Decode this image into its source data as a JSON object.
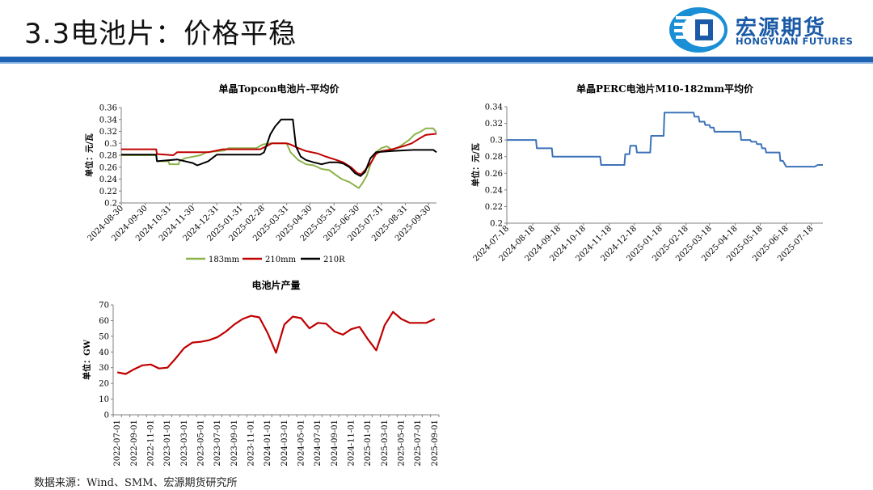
{
  "page": {
    "title": "3.3电池片：价格平稳",
    "logo_cn": "宏源期货",
    "logo_en": "HONGYUAN FUTURES",
    "source": "数据来源：Wind、SMM、宏源期货研究所",
    "colors": {
      "brand_blue": "#1a5aa6",
      "bar_blue": "#1f64b4"
    }
  },
  "chart_data": [
    {
      "type": "line",
      "title": "单晶Topcon电池片-平均价",
      "ylabel": "单位：元/瓦",
      "ylim": [
        0.2,
        0.36
      ],
      "yticks": [
        "0.2",
        "0.22",
        "0.24",
        "0.26",
        "0.28",
        "0.3",
        "0.32",
        "0.34",
        "0.36"
      ],
      "xlim": [
        "2024-08-30",
        "2025-10-10"
      ],
      "xticks": [
        "2024-08-30",
        "2024-09-30",
        "2024-10-31",
        "2024-11-30",
        "2024-12-31",
        "2025-01-31",
        "2025-02-28",
        "2025-03-31",
        "2025-04-30",
        "2025-05-31",
        "2025-06-30",
        "2025-07-31",
        "2025-08-31",
        "2025-09-30"
      ],
      "legend_position": "bottom",
      "series": [
        {
          "name": "183mm",
          "color": "#8db24a",
          "points": [
            [
              "2024-08-30",
              0.28
            ],
            [
              "2024-10-14",
              0.28
            ],
            [
              "2024-10-15",
              0.27
            ],
            [
              "2024-10-30",
              0.27
            ],
            [
              "2024-10-31",
              0.265
            ],
            [
              "2024-11-12",
              0.265
            ],
            [
              "2024-11-13",
              0.27
            ],
            [
              "2024-11-20",
              0.275
            ],
            [
              "2024-12-10",
              0.28
            ],
            [
              "2024-12-18",
              0.285
            ],
            [
              "2025-01-10",
              0.288
            ],
            [
              "2025-01-15",
              0.292
            ],
            [
              "2025-02-20",
              0.292
            ],
            [
              "2025-02-28",
              0.298
            ],
            [
              "2025-03-10",
              0.3
            ],
            [
              "2025-03-25",
              0.3
            ],
            [
              "2025-03-31",
              0.3
            ],
            [
              "2025-04-05",
              0.285
            ],
            [
              "2025-04-15",
              0.272
            ],
            [
              "2025-04-25",
              0.265
            ],
            [
              "2025-05-05",
              0.263
            ],
            [
              "2025-05-15",
              0.257
            ],
            [
              "2025-05-25",
              0.255
            ],
            [
              "2025-06-01",
              0.248
            ],
            [
              "2025-06-10",
              0.24
            ],
            [
              "2025-06-20",
              0.235
            ],
            [
              "2025-06-28",
              0.228
            ],
            [
              "2025-07-02",
              0.225
            ],
            [
              "2025-07-06",
              0.232
            ],
            [
              "2025-07-12",
              0.245
            ],
            [
              "2025-07-18",
              0.268
            ],
            [
              "2025-07-24",
              0.285
            ],
            [
              "2025-07-31",
              0.292
            ],
            [
              "2025-08-07",
              0.295
            ],
            [
              "2025-08-14",
              0.289
            ],
            [
              "2025-08-24",
              0.295
            ],
            [
              "2025-09-04",
              0.305
            ],
            [
              "2025-09-12",
              0.315
            ],
            [
              "2025-09-20",
              0.32
            ],
            [
              "2025-09-26",
              0.325
            ],
            [
              "2025-10-06",
              0.325
            ],
            [
              "2025-10-10",
              0.318
            ]
          ]
        },
        {
          "name": "210mm",
          "color": "#c00000",
          "points": [
            [
              "2024-08-30",
              0.29
            ],
            [
              "2024-10-14",
              0.29
            ],
            [
              "2024-10-15",
              0.282
            ],
            [
              "2024-11-05",
              0.28
            ],
            [
              "2024-11-10",
              0.285
            ],
            [
              "2024-12-20",
              0.285
            ],
            [
              "2025-01-08",
              0.29
            ],
            [
              "2025-02-25",
              0.29
            ],
            [
              "2025-03-05",
              0.295
            ],
            [
              "2025-03-12",
              0.3
            ],
            [
              "2025-03-31",
              0.3
            ],
            [
              "2025-04-05",
              0.298
            ],
            [
              "2025-04-15",
              0.292
            ],
            [
              "2025-04-25",
              0.287
            ],
            [
              "2025-05-10",
              0.283
            ],
            [
              "2025-05-20",
              0.278
            ],
            [
              "2025-06-01",
              0.273
            ],
            [
              "2025-06-12",
              0.268
            ],
            [
              "2025-06-22",
              0.26
            ],
            [
              "2025-06-30",
              0.25
            ],
            [
              "2025-07-05",
              0.248
            ],
            [
              "2025-07-10",
              0.255
            ],
            [
              "2025-07-18",
              0.268
            ],
            [
              "2025-07-24",
              0.282
            ],
            [
              "2025-07-31",
              0.287
            ],
            [
              "2025-08-14",
              0.29
            ],
            [
              "2025-08-28",
              0.295
            ],
            [
              "2025-09-08",
              0.3
            ],
            [
              "2025-09-18",
              0.308
            ],
            [
              "2025-09-26",
              0.314
            ],
            [
              "2025-10-10",
              0.316
            ]
          ]
        },
        {
          "name": "210R",
          "color": "#000000",
          "points": [
            [
              "2024-08-30",
              0.281
            ],
            [
              "2024-10-14",
              0.281
            ],
            [
              "2024-10-15",
              0.27
            ],
            [
              "2024-11-10",
              0.273
            ],
            [
              "2024-11-30",
              0.267
            ],
            [
              "2024-12-06",
              0.263
            ],
            [
              "2024-12-20",
              0.27
            ],
            [
              "2024-12-31",
              0.281
            ],
            [
              "2025-02-25",
              0.281
            ],
            [
              "2025-03-02",
              0.285
            ],
            [
              "2025-03-06",
              0.3
            ],
            [
              "2025-03-10",
              0.315
            ],
            [
              "2025-03-16",
              0.328
            ],
            [
              "2025-03-24",
              0.34
            ],
            [
              "2025-04-08",
              0.34
            ],
            [
              "2025-04-12",
              0.295
            ],
            [
              "2025-04-18",
              0.278
            ],
            [
              "2025-04-25",
              0.272
            ],
            [
              "2025-05-05",
              0.268
            ],
            [
              "2025-05-15",
              0.265
            ],
            [
              "2025-05-25",
              0.268
            ],
            [
              "2025-06-05",
              0.268
            ],
            [
              "2025-06-12",
              0.266
            ],
            [
              "2025-06-20",
              0.26
            ],
            [
              "2025-06-27",
              0.25
            ],
            [
              "2025-07-04",
              0.245
            ],
            [
              "2025-07-10",
              0.252
            ],
            [
              "2025-07-17",
              0.275
            ],
            [
              "2025-07-24",
              0.285
            ],
            [
              "2025-08-14",
              0.287
            ],
            [
              "2025-09-10",
              0.289
            ],
            [
              "2025-10-06",
              0.289
            ],
            [
              "2025-10-10",
              0.285
            ]
          ]
        }
      ]
    },
    {
      "type": "line",
      "title": "单晶PERC电池片M10-182mm平均价",
      "ylabel": "单位：元/瓦",
      "ylim": [
        0.2,
        0.34
      ],
      "yticks": [
        "0.2",
        "0.22",
        "0.24",
        "0.26",
        "0.28",
        "0.3",
        "0.32",
        "0.34"
      ],
      "xlim": [
        "2024-07-18",
        "2025-08-01"
      ],
      "xticks": [
        "2024-07-18",
        "2024-08-18",
        "2024-09-18",
        "2024-10-18",
        "2024-11-18",
        "2024-12-18",
        "2025-01-18",
        "2025-02-18",
        "2025-03-18",
        "2025-04-18",
        "2025-05-18",
        "2025-06-18",
        "2025-07-18"
      ],
      "legend_position": "none",
      "series": [
        {
          "name": "",
          "color": "#3d72b8",
          "points": [
            [
              "2024-07-18",
              0.3
            ],
            [
              "2024-08-22",
              0.3
            ],
            [
              "2024-08-23",
              0.29
            ],
            [
              "2024-09-10",
              0.29
            ],
            [
              "2024-09-11",
              0.28
            ],
            [
              "2024-11-07",
              0.28
            ],
            [
              "2024-11-08",
              0.27
            ],
            [
              "2024-12-06",
              0.27
            ],
            [
              "2024-12-07",
              0.283
            ],
            [
              "2024-12-12",
              0.283
            ],
            [
              "2024-12-13",
              0.293
            ],
            [
              "2024-12-20",
              0.293
            ],
            [
              "2024-12-21",
              0.285
            ],
            [
              "2025-01-06",
              0.285
            ],
            [
              "2025-01-07",
              0.305
            ],
            [
              "2025-01-22",
              0.305
            ],
            [
              "2025-01-23",
              0.333
            ],
            [
              "2025-02-27",
              0.333
            ],
            [
              "2025-02-28",
              0.328
            ],
            [
              "2025-03-05",
              0.328
            ],
            [
              "2025-03-06",
              0.322
            ],
            [
              "2025-03-12",
              0.322
            ],
            [
              "2025-03-13",
              0.318
            ],
            [
              "2025-03-18",
              0.318
            ],
            [
              "2025-03-19",
              0.315
            ],
            [
              "2025-03-23",
              0.315
            ],
            [
              "2025-03-24",
              0.31
            ],
            [
              "2025-04-24",
              0.31
            ],
            [
              "2025-04-25",
              0.3
            ],
            [
              "2025-05-06",
              0.3
            ],
            [
              "2025-05-07",
              0.298
            ],
            [
              "2025-05-13",
              0.298
            ],
            [
              "2025-05-14",
              0.295
            ],
            [
              "2025-05-19",
              0.295
            ],
            [
              "2025-05-20",
              0.29
            ],
            [
              "2025-05-24",
              0.29
            ],
            [
              "2025-05-25",
              0.285
            ],
            [
              "2025-06-10",
              0.285
            ],
            [
              "2025-06-11",
              0.275
            ],
            [
              "2025-06-14",
              0.275
            ],
            [
              "2025-06-18",
              0.268
            ],
            [
              "2025-07-22",
              0.268
            ],
            [
              "2025-07-26",
              0.27
            ],
            [
              "2025-08-01",
              0.27
            ]
          ]
        }
      ]
    },
    {
      "type": "line",
      "title": "电池片产量",
      "ylabel": "单位：GW",
      "ylim": [
        0,
        70
      ],
      "yticks": [
        "0",
        "10",
        "20",
        "30",
        "40",
        "50",
        "60",
        "70"
      ],
      "categories": [
        "2022-07-01",
        "2022-08-01",
        "2022-09-01",
        "2022-10-01",
        "2022-11-01",
        "2022-12-01",
        "2023-01-01",
        "2023-02-01",
        "2023-03-01",
        "2023-04-01",
        "2023-05-01",
        "2023-06-01",
        "2023-07-01",
        "2023-08-01",
        "2023-09-01",
        "2023-10-01",
        "2023-11-01",
        "2023-12-01",
        "2024-01-01",
        "2024-02-01",
        "2024-03-01",
        "2024-04-01",
        "2024-05-01",
        "2024-06-01",
        "2024-07-01",
        "2024-08-01",
        "2024-09-01",
        "2024-10-01",
        "2024-11-01",
        "2024-12-01",
        "2025-01-01",
        "2025-02-01",
        "2025-03-01",
        "2025-04-01",
        "2025-05-01",
        "2025-06-01",
        "2025-07-01",
        "2025-08-01",
        "2025-09-01"
      ],
      "xtick_labels": [
        "2022-07-01",
        "2022-09-01",
        "2022-11-01",
        "2023-01-01",
        "2023-03-01",
        "2023-05-01",
        "2023-07-01",
        "2023-09-01",
        "2023-11-01",
        "2024-01-01",
        "2024-03-01",
        "2024-05-01",
        "2024-07-01",
        "2024-09-01",
        "2024-11-01",
        "2025-01-01",
        "2025-03-01",
        "2025-05-01",
        "2025-07-01",
        "2025-09-01"
      ],
      "legend_position": "none",
      "series": [
        {
          "name": "",
          "color": "#c00000",
          "values": [
            27,
            26,
            29,
            31.5,
            32,
            29.5,
            30,
            36,
            42.5,
            46,
            46.5,
            47.5,
            49.5,
            53,
            57.5,
            61,
            63,
            62,
            52,
            39.5,
            57.5,
            62.5,
            61.5,
            55,
            58.5,
            58,
            53,
            51,
            54.5,
            56,
            48,
            41,
            57,
            65.5,
            61,
            58.5,
            58.5,
            58.5,
            61
          ]
        }
      ]
    }
  ]
}
